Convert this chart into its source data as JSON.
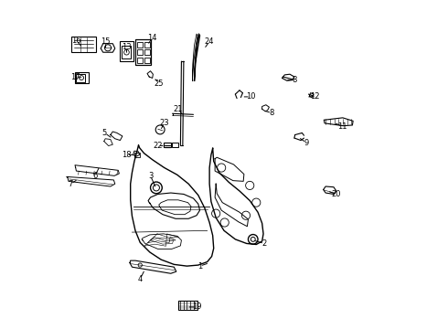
{
  "background_color": "#ffffff",
  "line_color": "#000000",
  "fig_w": 4.9,
  "fig_h": 3.6,
  "dpi": 100,
  "callouts": [
    {
      "label": "1",
      "pt": [
        0.455,
        0.195
      ],
      "txt": [
        0.425,
        0.185
      ]
    },
    {
      "label": "2",
      "pt": [
        0.59,
        0.265
      ],
      "txt": [
        0.625,
        0.255
      ]
    },
    {
      "label": "3",
      "pt": [
        0.29,
        0.425
      ],
      "txt": [
        0.272,
        0.465
      ]
    },
    {
      "label": "4",
      "pt": [
        0.255,
        0.175
      ],
      "txt": [
        0.24,
        0.145
      ]
    },
    {
      "label": "5",
      "pt": [
        0.155,
        0.58
      ],
      "txt": [
        0.13,
        0.598
      ]
    },
    {
      "label": "6",
      "pt": [
        0.115,
        0.495
      ],
      "txt": [
        0.1,
        0.465
      ]
    },
    {
      "label": "7",
      "pt": [
        0.048,
        0.455
      ],
      "txt": [
        0.025,
        0.44
      ]
    },
    {
      "label": "8",
      "pt": [
        0.69,
        0.762
      ],
      "txt": [
        0.718,
        0.762
      ]
    },
    {
      "label": "8",
      "pt": [
        0.62,
        0.668
      ],
      "txt": [
        0.648,
        0.66
      ]
    },
    {
      "label": "9",
      "pt": [
        0.73,
        0.585
      ],
      "txt": [
        0.755,
        0.568
      ]
    },
    {
      "label": "10",
      "pt": [
        0.555,
        0.71
      ],
      "txt": [
        0.582,
        0.71
      ]
    },
    {
      "label": "11",
      "pt": [
        0.84,
        0.63
      ],
      "txt": [
        0.868,
        0.618
      ]
    },
    {
      "label": "12",
      "pt": [
        0.755,
        0.71
      ],
      "txt": [
        0.782,
        0.71
      ]
    },
    {
      "label": "13",
      "pt": [
        0.198,
        0.84
      ],
      "txt": [
        0.198,
        0.865
      ]
    },
    {
      "label": "14",
      "pt": [
        0.262,
        0.87
      ],
      "txt": [
        0.278,
        0.892
      ]
    },
    {
      "label": "15",
      "pt": [
        0.133,
        0.855
      ],
      "txt": [
        0.133,
        0.88
      ]
    },
    {
      "label": "16",
      "pt": [
        0.062,
        0.862
      ],
      "txt": [
        0.042,
        0.885
      ]
    },
    {
      "label": "17",
      "pt": [
        0.065,
        0.77
      ],
      "txt": [
        0.04,
        0.77
      ]
    },
    {
      "label": "18",
      "pt": [
        0.225,
        0.53
      ],
      "txt": [
        0.198,
        0.53
      ]
    },
    {
      "label": "19",
      "pt": [
        0.385,
        0.058
      ],
      "txt": [
        0.415,
        0.058
      ]
    },
    {
      "label": "20",
      "pt": [
        0.82,
        0.418
      ],
      "txt": [
        0.848,
        0.408
      ]
    },
    {
      "label": "21",
      "pt": [
        0.375,
        0.65
      ],
      "txt": [
        0.358,
        0.672
      ]
    },
    {
      "label": "22",
      "pt": [
        0.318,
        0.558
      ],
      "txt": [
        0.295,
        0.558
      ]
    },
    {
      "label": "23",
      "pt": [
        0.302,
        0.605
      ],
      "txt": [
        0.315,
        0.628
      ]
    },
    {
      "label": "24",
      "pt": [
        0.438,
        0.858
      ],
      "txt": [
        0.455,
        0.882
      ]
    },
    {
      "label": "25",
      "pt": [
        0.282,
        0.77
      ],
      "txt": [
        0.298,
        0.752
      ]
    }
  ]
}
